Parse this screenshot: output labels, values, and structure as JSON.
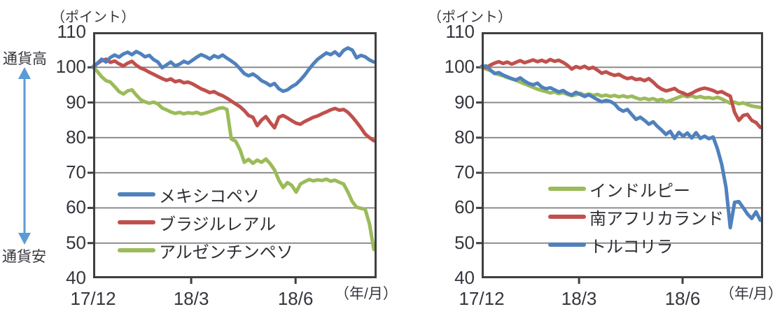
{
  "page": {
    "background": "#ffffff"
  },
  "colors": {
    "gridline": "#8c8c8c",
    "border": "#3f3f3f",
    "text": "#35353d"
  },
  "annotations": {
    "high_label": "通貨高",
    "low_label": "通貨安",
    "arrow_icon": "vertical-double-arrow",
    "arrow_color": "#5b9bd5"
  },
  "chart_data": [
    {
      "type": "line",
      "title": "",
      "unit_label": "（ポイント）",
      "xlabel_unit": "（年/月）",
      "ylim": [
        40,
        110
      ],
      "y_ticks": [
        110,
        100,
        90,
        80,
        70,
        60,
        50,
        40
      ],
      "x_ticks": [
        {
          "label": "17/12",
          "pos": 0
        },
        {
          "label": "18/3",
          "pos": 0.346
        },
        {
          "label": "18/6",
          "pos": 0.714
        }
      ],
      "grid": true,
      "legend_position": "inside-bottom-left",
      "draw_order": [
        2,
        1,
        0
      ],
      "series": [
        {
          "id": "mexican-peso",
          "name": "メキシコペソ",
          "color": "#4f81bd",
          "values": [
            100.0,
            101.2,
            102.3,
            101.5,
            102.8,
            103.5,
            102.9,
            103.8,
            104.3,
            103.6,
            104.5,
            103.9,
            103.0,
            103.4,
            102.2,
            101.5,
            99.9,
            100.7,
            101.5,
            100.4,
            100.9,
            101.7,
            101.2,
            102.0,
            102.9,
            103.6,
            103.1,
            102.4,
            103.3,
            102.8,
            103.5,
            102.6,
            101.8,
            100.9,
            99.6,
            98.2,
            97.6,
            98.1,
            97.3,
            96.2,
            95.6,
            94.8,
            95.4,
            93.9,
            93.2,
            93.6,
            94.5,
            95.2,
            96.4,
            97.8,
            99.5,
            101.0,
            102.3,
            103.2,
            104.1,
            103.6,
            104.4,
            103.3,
            104.8,
            105.5,
            104.9,
            102.7,
            103.4,
            103.0,
            102.1,
            101.5
          ]
        },
        {
          "id": "brazilian-real",
          "name": "ブラジルレアル",
          "color": "#c0504d",
          "values": [
            100.2,
            101.1,
            101.9,
            102.3,
            101.4,
            101.8,
            101.0,
            100.4,
            101.2,
            101.7,
            100.6,
            99.8,
            99.3,
            98.6,
            98.0,
            97.4,
            96.8,
            96.3,
            96.7,
            95.9,
            96.2,
            95.6,
            95.8,
            95.3,
            94.6,
            93.9,
            93.4,
            92.8,
            93.1,
            92.4,
            91.9,
            91.2,
            90.4,
            89.6,
            88.8,
            87.7,
            86.3,
            85.8,
            83.4,
            85.0,
            86.0,
            84.3,
            82.8,
            85.8,
            86.3,
            85.6,
            84.8,
            84.1,
            83.8,
            84.6,
            85.2,
            85.8,
            86.2,
            86.8,
            87.3,
            87.9,
            88.3,
            87.8,
            88.0,
            87.2,
            85.9,
            84.4,
            82.8,
            81.0,
            80.0,
            79.1
          ]
        },
        {
          "id": "argentine-peso",
          "name": "アルゼンチンペソ",
          "color": "#9bbb59",
          "values": [
            100.0,
            98.8,
            97.3,
            96.2,
            95.8,
            94.5,
            93.1,
            92.4,
            93.3,
            93.6,
            92.1,
            90.8,
            90.2,
            89.8,
            90.1,
            89.6,
            88.4,
            87.9,
            87.3,
            86.9,
            87.2,
            86.8,
            87.1,
            86.9,
            87.2,
            86.7,
            87.0,
            87.4,
            87.8,
            88.3,
            88.5,
            88.0,
            79.6,
            79.0,
            76.6,
            73.0,
            73.8,
            72.7,
            73.6,
            73.0,
            73.9,
            72.6,
            70.8,
            67.9,
            65.8,
            67.2,
            66.4,
            64.5,
            66.8,
            67.5,
            68.1,
            67.7,
            68.0,
            67.8,
            68.2,
            67.6,
            67.9,
            67.3,
            66.8,
            64.5,
            61.8,
            60.2,
            59.9,
            59.6,
            55.4,
            48.2
          ]
        }
      ]
    },
    {
      "type": "line",
      "title": "",
      "unit_label": "（ポイント）",
      "xlabel_unit": "（年/月）",
      "ylim": [
        40,
        110
      ],
      "y_ticks": [
        110,
        100,
        90,
        80,
        70,
        60,
        50,
        40
      ],
      "x_ticks": [
        {
          "label": "17/12",
          "pos": 0
        },
        {
          "label": "18/3",
          "pos": 0.346
        },
        {
          "label": "18/6",
          "pos": 0.714
        }
      ],
      "grid": true,
      "legend_position": "inside-bottom-center",
      "draw_order": [
        0,
        1,
        2
      ],
      "series": [
        {
          "id": "indian-rupee",
          "name": "インドルピー",
          "color": "#9bbb59",
          "values": [
            100.0,
            99.5,
            99.1,
            98.4,
            97.9,
            97.6,
            97.1,
            96.7,
            96.3,
            95.8,
            95.3,
            94.8,
            94.3,
            93.8,
            93.4,
            93.1,
            92.7,
            93.0,
            92.5,
            92.8,
            92.3,
            91.9,
            92.2,
            92.6,
            92.1,
            92.4,
            92.0,
            92.3,
            91.8,
            92.1,
            91.7,
            92.0,
            91.6,
            91.9,
            91.5,
            91.8,
            91.3,
            90.9,
            91.2,
            90.8,
            91.1,
            90.6,
            90.9,
            90.2,
            90.6,
            91.0,
            91.5,
            92.0,
            91.6,
            91.9,
            91.4,
            91.7,
            91.3,
            91.4,
            91.1,
            91.5,
            91.0,
            90.4,
            89.8,
            90.1,
            89.6,
            89.9,
            89.4,
            89.0,
            88.8,
            88.6
          ]
        },
        {
          "id": "south-african-rand",
          "name": "南アフリカランド",
          "color": "#c0504d",
          "values": [
            100.3,
            99.9,
            100.6,
            101.2,
            101.6,
            101.1,
            101.5,
            100.9,
            101.4,
            101.9,
            101.3,
            101.7,
            102.1,
            101.6,
            102.0,
            101.5,
            102.2,
            101.7,
            102.0,
            101.4,
            100.6,
            99.5,
            100.2,
            99.8,
            100.3,
            99.6,
            100.0,
            99.2,
            98.3,
            98.7,
            98.1,
            97.7,
            98.0,
            97.3,
            96.8,
            97.1,
            96.5,
            96.7,
            96.2,
            96.8,
            95.8,
            94.6,
            93.8,
            93.3,
            93.6,
            94.0,
            93.1,
            92.7,
            92.1,
            92.6,
            93.3,
            93.8,
            94.1,
            93.8,
            93.4,
            92.8,
            93.1,
            92.4,
            91.8,
            87.2,
            84.9,
            86.3,
            86.6,
            84.9,
            84.3,
            82.9
          ]
        },
        {
          "id": "turkish-lira",
          "name": "トルコリラ",
          "color": "#4f81bd",
          "values": [
            100.2,
            100.4,
            99.3,
            98.2,
            98.5,
            97.8,
            97.3,
            96.8,
            96.4,
            97.0,
            96.1,
            95.4,
            95.0,
            95.5,
            94.4,
            93.9,
            94.2,
            93.6,
            93.0,
            93.4,
            92.6,
            92.1,
            92.9,
            92.3,
            91.7,
            92.2,
            91.5,
            90.8,
            90.2,
            90.6,
            90.3,
            89.6,
            88.2,
            87.5,
            88.0,
            86.6,
            85.2,
            85.8,
            84.9,
            83.8,
            84.5,
            83.2,
            82.1,
            80.9,
            81.8,
            79.8,
            81.5,
            80.4,
            81.3,
            79.9,
            81.4,
            79.8,
            80.4,
            79.7,
            80.2,
            76.8,
            72.4,
            65.9,
            54.4,
            61.6,
            61.8,
            60.1,
            58.3,
            57.0,
            58.9,
            56.5
          ]
        }
      ]
    }
  ]
}
